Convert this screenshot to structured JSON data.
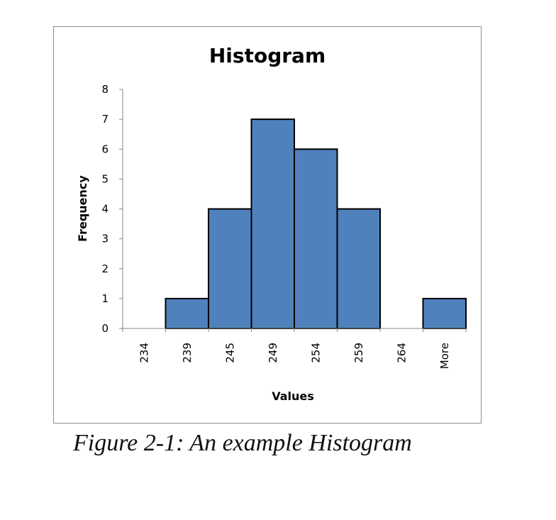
{
  "chart_data": {
    "type": "bar",
    "title": "Histogram",
    "xlabel": "Values",
    "ylabel": "Frequency",
    "categories": [
      "234",
      "239",
      "245",
      "249",
      "254",
      "259",
      "264",
      "More"
    ],
    "values": [
      0,
      1,
      4,
      7,
      6,
      4,
      0,
      1
    ],
    "ylim": [
      0,
      8
    ],
    "yticks": [
      0,
      1,
      2,
      3,
      4,
      5,
      6,
      7,
      8
    ],
    "grid": false,
    "legend": "none",
    "bar_color": "#4f81bd",
    "bar_edge_color": "#000000"
  },
  "caption": "Figure 2-1: An example Histogram"
}
